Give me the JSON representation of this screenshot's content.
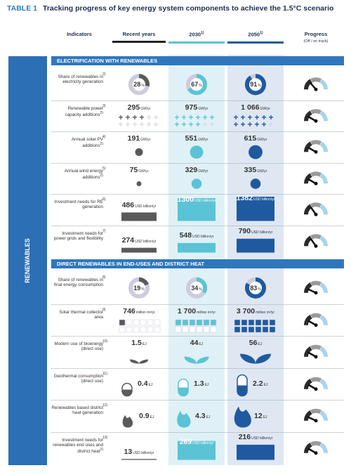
{
  "header": {
    "label": "TABLE 1",
    "title": "Tracking progress of key energy system components to achieve the 1.5°C scenario",
    "columns": [
      "Indicators",
      "Recent years",
      "2030",
      "2050",
      "Progress"
    ],
    "column_note": "1)",
    "progress_scale": "(Off / on track)"
  },
  "side_label": "RENEWABLES",
  "sections": [
    {
      "title": "ELECTRIFICATION WITH RENEWABLES",
      "rows": [
        {
          "indicator": "Share of renewables in electricity generation",
          "note": "2)",
          "cells": [
            {
              "value": 28,
              "unit": "%"
            },
            {
              "value": 67,
              "unit": "%"
            },
            {
              "value": 91,
              "unit": "%"
            }
          ]
        },
        {
          "indicator": "Renewable power capacity additions",
          "indicator_note": "2)",
          "note": "3)",
          "cells": [
            {
              "value": 295,
              "unit": "GW/yr"
            },
            {
              "value": 975,
              "unit": "GW/yr"
            },
            {
              "value": "1 066",
              "unit": "GW/yr"
            }
          ]
        },
        {
          "indicator": "Annual solar PV additions",
          "indicator_note": "2)",
          "note": "4)",
          "cells": [
            {
              "value": 191,
              "unit": "GW/yr"
            },
            {
              "value": 551,
              "unit": "GW/yr"
            },
            {
              "value": 615,
              "unit": "GW/yr"
            }
          ]
        },
        {
          "indicator": "Annual wind energy additions",
          "indicator_note": "2)",
          "note": "5)",
          "cells": [
            {
              "value": 75,
              "unit": "GW/yr"
            },
            {
              "value": 329,
              "unit": "GW/yr"
            },
            {
              "value": 335,
              "unit": "GW/yr"
            }
          ]
        },
        {
          "indicator": "Investment needs for RE generation",
          "note": "6)",
          "cells": [
            {
              "value": 486,
              "unit": "USD billion/yr"
            },
            {
              "value": 1300,
              "unit": "USD billion/yr"
            },
            {
              "value": 1382,
              "unit": "USD billion/yr"
            }
          ]
        },
        {
          "indicator": "Investment needs for power grids and flexibility",
          "note": "7)",
          "cells": [
            {
              "value": 274,
              "unit": "USD billion/yr"
            },
            {
              "value": 548,
              "unit": "USD billion/yr"
            },
            {
              "value": 790,
              "unit": "USD billion/yr"
            }
          ]
        }
      ]
    },
    {
      "title": "DIRECT RENEWABLES IN END-USES AND DISTRICT HEAT",
      "rows": [
        {
          "indicator": "Share of renewables in final energy consumption",
          "note": "8)",
          "cells": [
            {
              "value": 19,
              "unit": "%"
            },
            {
              "value": 34,
              "unit": "%"
            },
            {
              "value": 83,
              "unit": "%"
            }
          ]
        },
        {
          "indicator": "Solar thermal collector area",
          "note": "9)",
          "cells": [
            {
              "value": 746,
              "unit": "million m²/yr"
            },
            {
              "value": "1 700",
              "unit": "million m²/yr"
            },
            {
              "value": "3 700",
              "unit": "million m²/yr"
            }
          ]
        },
        {
          "indicator": "Modern use of bioenergy (direct use)",
          "note": "10)",
          "cells": [
            {
              "value": 1.5,
              "unit": "EJ"
            },
            {
              "value": 44,
              "unit": "EJ"
            },
            {
              "value": 56,
              "unit": "EJ"
            }
          ]
        },
        {
          "indicator": "Geothermal consumption (direct use)",
          "note": "11)",
          "cells": [
            {
              "value": 0.4,
              "unit": "EJ"
            },
            {
              "value": 1.3,
              "unit": "EJ"
            },
            {
              "value": 2.2,
              "unit": "EJ"
            }
          ]
        },
        {
          "indicator": "Renewables based district heat generation",
          "note": "12)",
          "cells": [
            {
              "value": 0.9,
              "unit": "EJ"
            },
            {
              "value": 4.3,
              "unit": "EJ"
            },
            {
              "value": 12,
              "unit": "EJ"
            }
          ]
        },
        {
          "indicator": "Investment needs for renewables end uses and district heat",
          "indicator_note": "2)",
          "note": "13)",
          "cells": [
            {
              "value": 13,
              "unit": "USD billion/yr"
            },
            {
              "value": 269,
              "unit": "USD billion/yr"
            },
            {
              "value": 216,
              "unit": "USD billion/yr"
            }
          ]
        }
      ]
    }
  ]
}
